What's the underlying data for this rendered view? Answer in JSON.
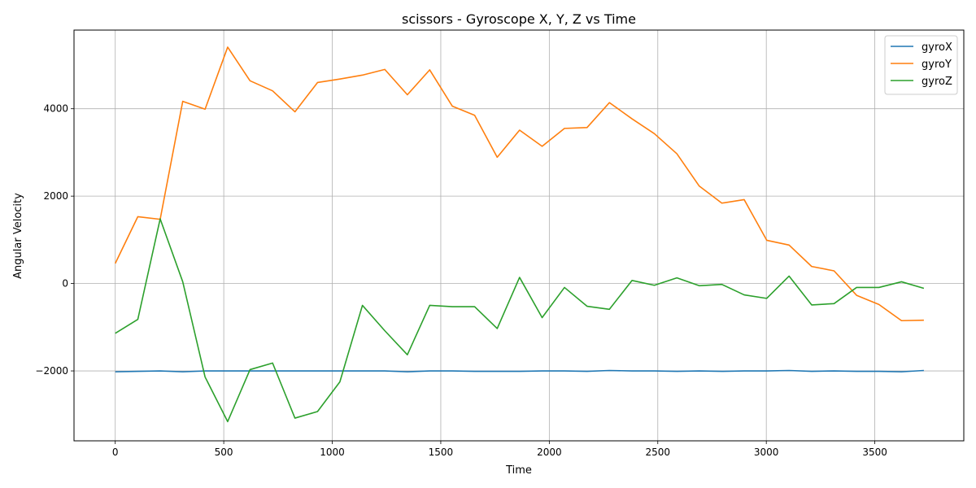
{
  "chart_data": {
    "type": "line",
    "title": "scissors - Gyroscope X, Y, Z vs Time",
    "xlabel": "Time",
    "ylabel": "Angular Velocity",
    "xlim": [
      -190,
      3910
    ],
    "ylim": [
      -3600,
      5800
    ],
    "xticks": [
      0,
      500,
      1000,
      1500,
      2000,
      2500,
      3000,
      3500
    ],
    "yticks": [
      -2000,
      0,
      2000,
      4000
    ],
    "grid": true,
    "legend_position": "top-right",
    "x": [
      0,
      104,
      207,
      311,
      414,
      518,
      621,
      725,
      828,
      932,
      1035,
      1139,
      1242,
      1346,
      1449,
      1553,
      1656,
      1760,
      1863,
      1967,
      2070,
      2174,
      2277,
      2381,
      2484,
      2588,
      2691,
      2795,
      2898,
      3002,
      3105,
      3209,
      3312,
      3416,
      3519,
      3623,
      3726
    ],
    "series": [
      {
        "name": "gyroX",
        "color": "#1f77b4",
        "values": [
          -2020,
          -2010,
          -2000,
          -2020,
          -2000,
          -2000,
          -2000,
          -2000,
          -2000,
          -2000,
          -2000,
          -2000,
          -2000,
          -2020,
          -2000,
          -2000,
          -2010,
          -2010,
          -2010,
          -2000,
          -2000,
          -2010,
          -1990,
          -2000,
          -2000,
          -2010,
          -2000,
          -2010,
          -2000,
          -2000,
          -1990,
          -2010,
          -2000,
          -2010,
          -2010,
          -2020,
          -1990
        ]
      },
      {
        "name": "gyroY",
        "color": "#ff7f0e",
        "values": [
          460,
          1530,
          1470,
          4170,
          3990,
          5410,
          4640,
          4410,
          3930,
          4600,
          4680,
          4770,
          4900,
          4320,
          4890,
          4060,
          3850,
          2890,
          3510,
          3140,
          3550,
          3570,
          4140,
          3770,
          3430,
          2970,
          2230,
          1840,
          1920,
          990,
          880,
          390,
          290,
          -270,
          -480,
          -850,
          -840
        ]
      },
      {
        "name": "gyroZ",
        "color": "#2ca02c",
        "values": [
          -1140,
          -820,
          1480,
          40,
          -2140,
          -3160,
          -1970,
          -1820,
          -3080,
          -2930,
          -2250,
          -500,
          -1080,
          -1630,
          -500,
          -530,
          -530,
          -1030,
          140,
          -780,
          -90,
          -520,
          -590,
          70,
          -40,
          130,
          -50,
          -20,
          -260,
          -340,
          170,
          -490,
          -460,
          -90,
          -90,
          40,
          -110
        ]
      }
    ]
  }
}
